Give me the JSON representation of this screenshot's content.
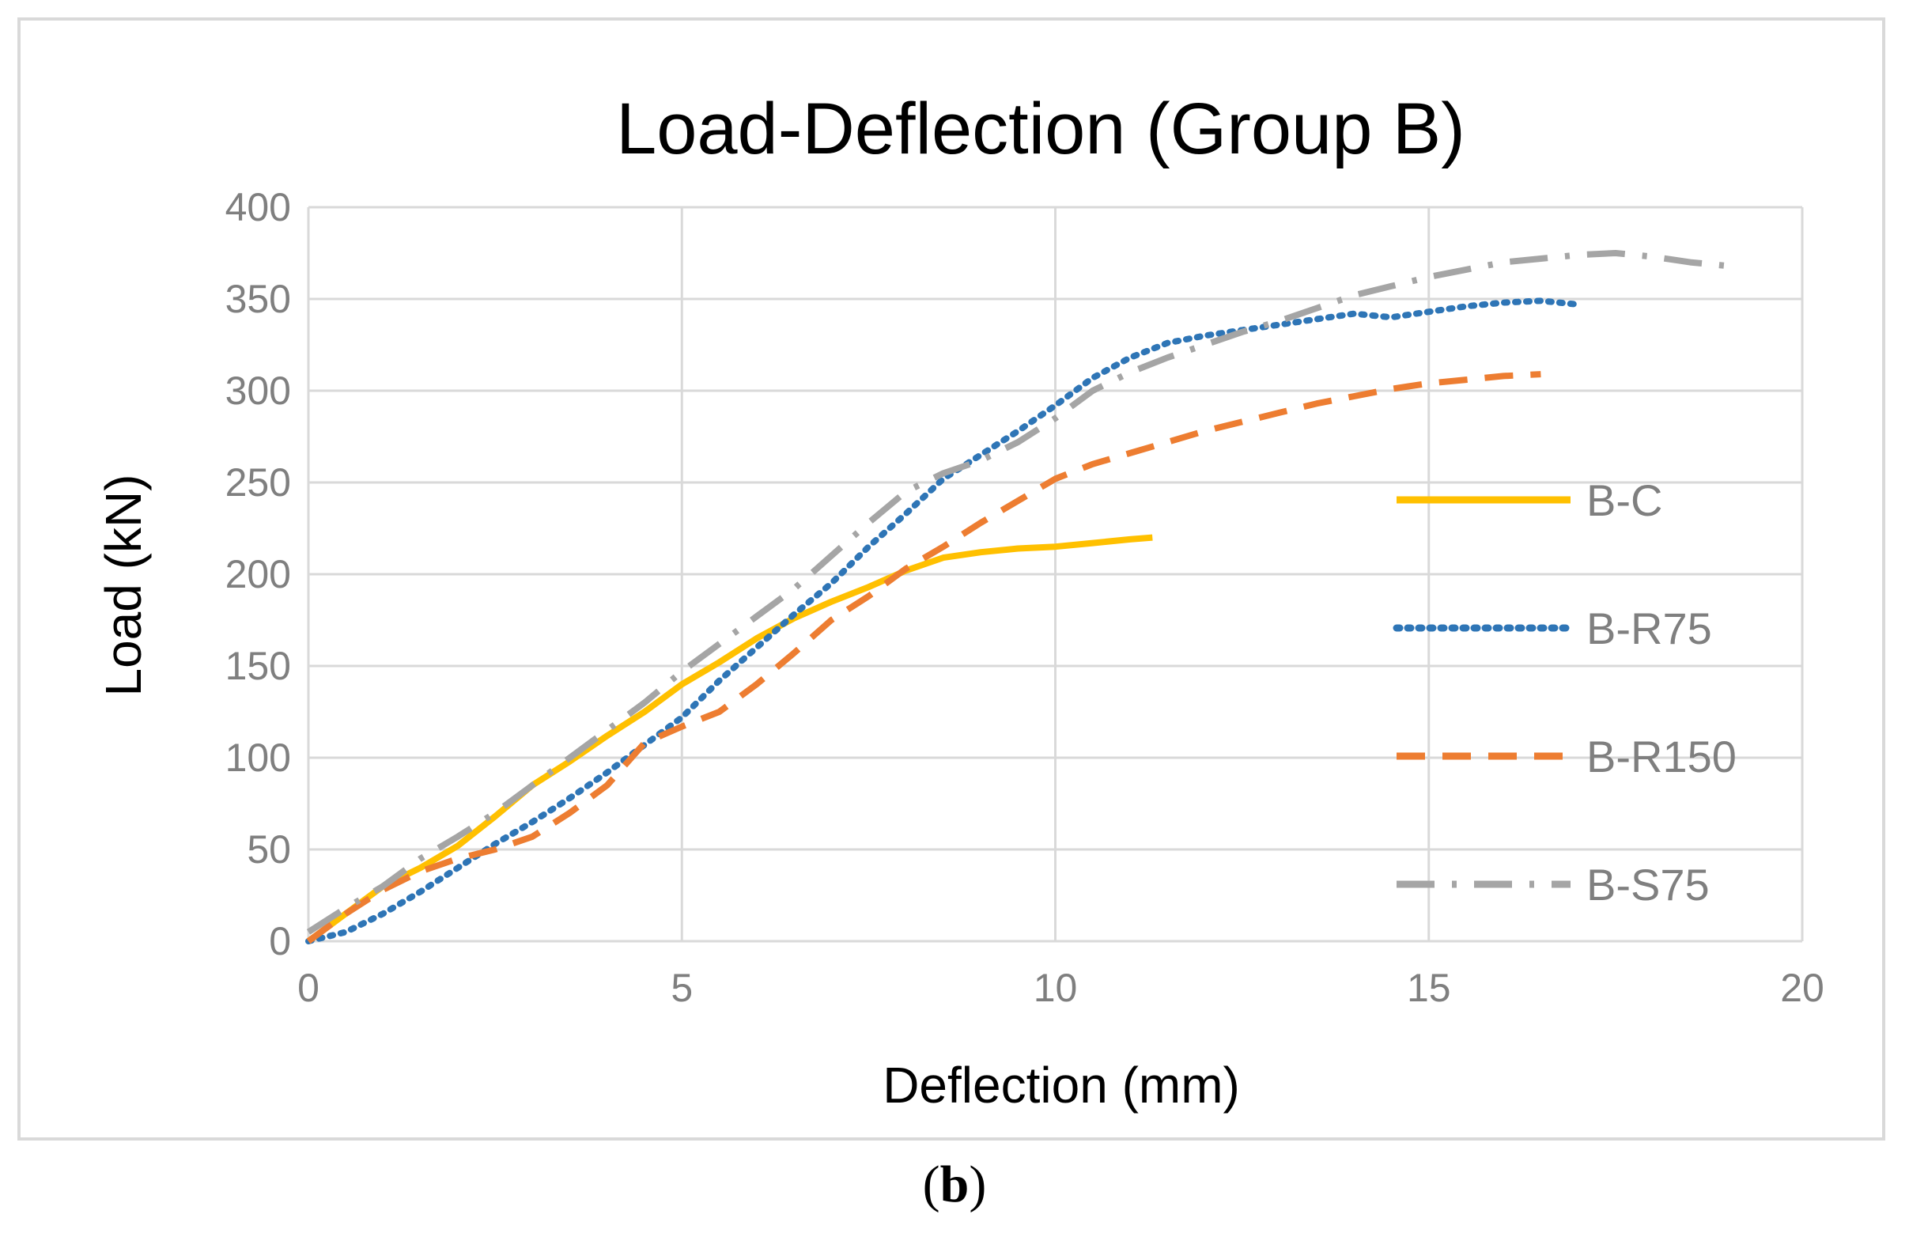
{
  "chart_data": {
    "type": "line",
    "title": "Load-Deflection (Group B)",
    "xlabel": "Deflection (mm)",
    "ylabel": "Load (kN)",
    "xlim": [
      0,
      20
    ],
    "ylim": [
      0,
      400
    ],
    "xticks": [
      0,
      5,
      10,
      15,
      20
    ],
    "yticks": [
      0,
      50,
      100,
      150,
      200,
      250,
      300,
      350,
      400
    ],
    "grid": true,
    "legend_position": "right",
    "series": [
      {
        "name": "B-C",
        "color": "#FFC000",
        "style": "solid",
        "x": [
          0,
          0.5,
          1,
          1.5,
          2,
          2.5,
          3,
          3.5,
          4,
          4.5,
          5,
          5.5,
          6,
          6.5,
          7,
          7.5,
          8,
          8.5,
          9,
          9.5,
          10,
          10.5,
          11,
          11.3
        ],
        "y": [
          0,
          15,
          30,
          40,
          52,
          68,
          85,
          98,
          112,
          125,
          140,
          152,
          165,
          176,
          185,
          193,
          202,
          209,
          212,
          214,
          215,
          217,
          219,
          220
        ]
      },
      {
        "name": "B-R75",
        "color": "#2E75B6",
        "style": "dotted",
        "x": [
          0,
          0.5,
          1,
          1.5,
          2,
          2.5,
          3,
          3.5,
          4,
          4.5,
          5,
          5.5,
          6,
          6.5,
          7,
          7.5,
          8,
          8.5,
          9,
          9.5,
          10,
          10.5,
          11,
          11.5,
          12,
          12.5,
          13,
          13.5,
          14,
          14.5,
          15,
          15.5,
          16,
          16.5,
          17
        ],
        "y": [
          0,
          5,
          15,
          27,
          40,
          53,
          65,
          78,
          92,
          107,
          122,
          142,
          160,
          178,
          195,
          215,
          233,
          252,
          265,
          278,
          292,
          307,
          318,
          326,
          330,
          333,
          336,
          339,
          342,
          340,
          343,
          346,
          348,
          349,
          347
        ]
      },
      {
        "name": "B-R150",
        "color": "#ED7D31",
        "style": "dashed",
        "x": [
          0,
          0.5,
          1,
          1.5,
          2,
          2.5,
          3,
          3.5,
          4,
          4.5,
          5,
          5.5,
          6,
          6.5,
          7,
          7.5,
          8,
          8.5,
          9,
          9.5,
          10,
          10.5,
          11,
          11.5,
          12,
          12.5,
          13,
          13.5,
          14,
          14.5,
          15,
          15.5,
          16,
          16.5
        ],
        "y": [
          0,
          15,
          28,
          38,
          45,
          50,
          57,
          70,
          85,
          108,
          117,
          125,
          140,
          157,
          175,
          188,
          203,
          215,
          228,
          240,
          252,
          260,
          266,
          272,
          278,
          283,
          288,
          293,
          297,
          301,
          304,
          306,
          308,
          309
        ]
      },
      {
        "name": "B-S75",
        "color": "#A5A5A5",
        "style": "dashdot",
        "x": [
          0,
          0.5,
          1,
          1.5,
          2,
          2.5,
          3,
          3.5,
          4,
          4.5,
          5,
          5.5,
          6,
          6.5,
          7,
          7.5,
          8,
          8.5,
          9,
          9.5,
          10,
          10.5,
          11,
          11.5,
          12,
          12.5,
          13,
          13.5,
          14,
          14.5,
          15,
          15.5,
          16,
          16.5,
          17,
          17.5,
          18,
          18.5,
          19
        ],
        "y": [
          5,
          18,
          30,
          45,
          57,
          70,
          85,
          100,
          115,
          130,
          147,
          162,
          177,
          192,
          210,
          228,
          245,
          255,
          262,
          272,
          285,
          300,
          310,
          318,
          325,
          332,
          338,
          345,
          352,
          357,
          362,
          366,
          370,
          372,
          374,
          375,
          373,
          370,
          368
        ]
      }
    ]
  },
  "caption": {
    "open": "(",
    "letter": "b",
    "close": ")"
  }
}
